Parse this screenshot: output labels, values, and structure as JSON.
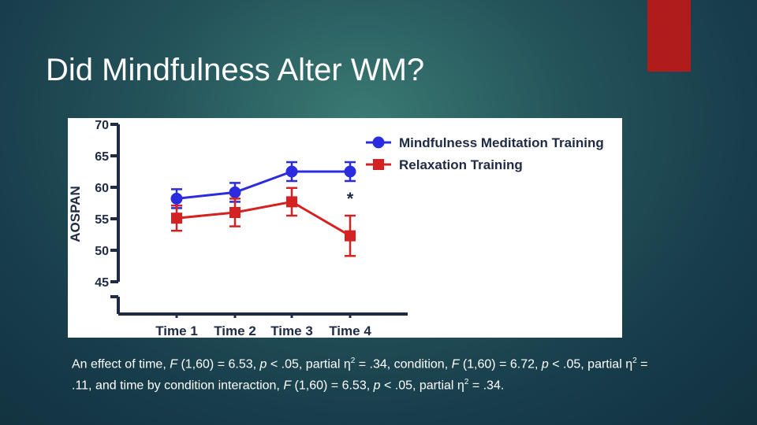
{
  "slide": {
    "title": "Did Mindfulness Alter WM?",
    "accent_color": "#b01c1c"
  },
  "chart_data": {
    "type": "line",
    "ylabel": "AOSPAN",
    "yticks": [
      "70",
      "65",
      "60",
      "55",
      "50",
      "45"
    ],
    "ylim": [
      45,
      70
    ],
    "axis_break": true,
    "categories": [
      "Time 1",
      "Time 2",
      "Time 3",
      "Time 4"
    ],
    "legend_position": "top-right",
    "series": [
      {
        "name": "Mindfulness Meditation Training",
        "color": "#2b2be0",
        "marker": "circle",
        "values": [
          58.2,
          59.2,
          62.5,
          62.5
        ],
        "errors": [
          1.5,
          1.5,
          1.5,
          1.5
        ]
      },
      {
        "name": "Relaxation Training",
        "color": "#d42121",
        "marker": "square",
        "values": [
          55.1,
          56.0,
          57.7,
          52.3
        ],
        "errors": [
          2.0,
          2.2,
          2.2,
          3.2
        ]
      }
    ],
    "annotations": [
      {
        "text": "*",
        "category": "Time 4",
        "value": 58.6
      }
    ]
  },
  "caption": {
    "t1": "An effect of time, ",
    "f1": "F",
    "t2": " (1,60) = 6.53, ",
    "p1": "p",
    "t3": " < .05, partial η",
    "sq1": "2",
    "t4": " = .34, condition, ",
    "f2": "F",
    "t5": " (1,60) = 6.72, ",
    "p2": "p",
    "t6": " < .05, partial η",
    "sq2": "2",
    "t7": " = .11, and time by condition interaction, ",
    "f3": "F",
    "t8": " (1,60) = 6.53, ",
    "p3": "p",
    "t9": " < .05, partial η",
    "sq3": "2",
    "t10": " = .34."
  }
}
